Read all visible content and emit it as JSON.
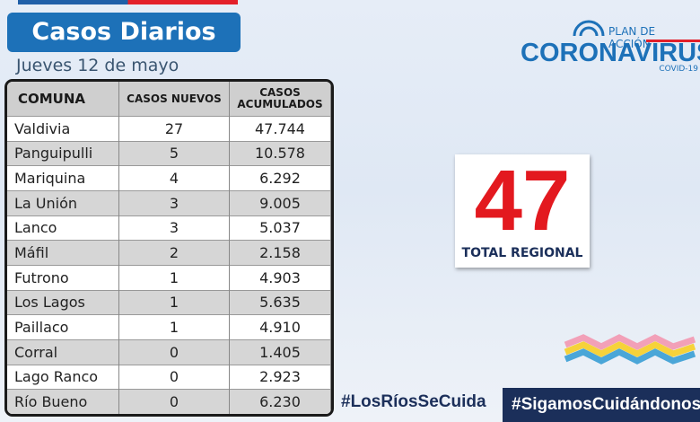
{
  "header": {
    "title": "Casos Diarios",
    "date": "Jueves 12  de mayo"
  },
  "logo": {
    "line1": "PLAN DE ACCIÓN",
    "line2": "CORONAVIRUS",
    "line3": "COVID-19"
  },
  "table": {
    "columns": [
      "COMUNA",
      "CASOS NUEVOS",
      "CASOS ACUMULADOS"
    ],
    "rows": [
      [
        "Valdivia",
        "27",
        "47.744"
      ],
      [
        "Panguipulli",
        "5",
        "10.578"
      ],
      [
        "Mariquina",
        "4",
        "6.292"
      ],
      [
        "La Unión",
        "3",
        "9.005"
      ],
      [
        "Lanco",
        "3",
        "5.037"
      ],
      [
        "Máfil",
        "2",
        "2.158"
      ],
      [
        "Futrono",
        "1",
        "4.903"
      ],
      [
        "Los Lagos",
        "1",
        "5.635"
      ],
      [
        "Paillaco",
        "1",
        "4.910"
      ],
      [
        "Corral",
        "0",
        "1.405"
      ],
      [
        "Lago Ranco",
        "0",
        "2.923"
      ],
      [
        "Río Bueno",
        "0",
        "6.230"
      ]
    ]
  },
  "total": {
    "value": "47",
    "label": "TOTAL REGIONAL"
  },
  "hashtags": [
    "#LosRíosSeCuida",
    "#SigamosCuidándonos"
  ]
}
